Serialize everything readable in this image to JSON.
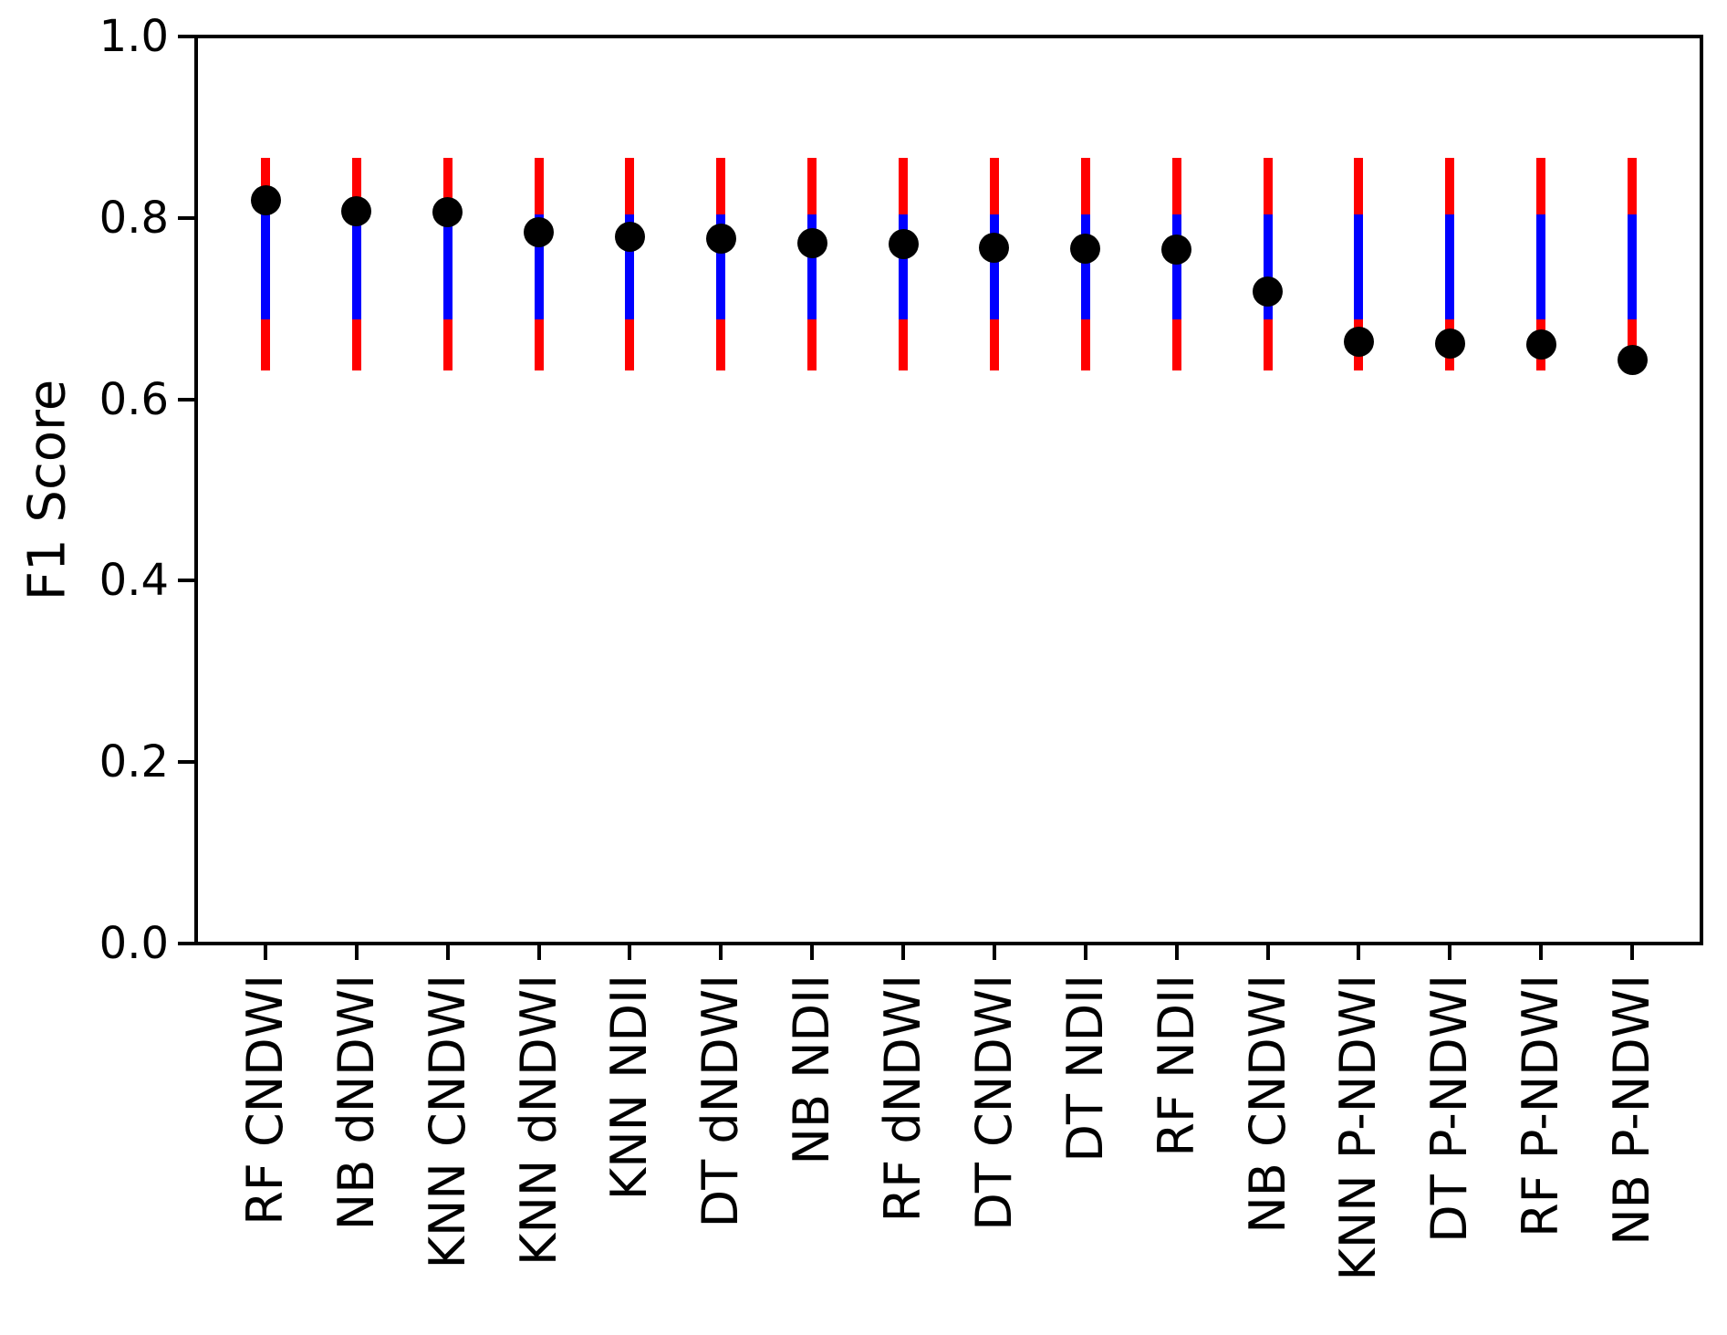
{
  "chart_data": {
    "type": "scatter",
    "title": "",
    "xlabel": "",
    "ylabel": "F1 Score",
    "ylim": [
      0.0,
      1.0
    ],
    "yticks": [
      0.0,
      0.2,
      0.4,
      0.6,
      0.8,
      1.0
    ],
    "ytick_labels": [
      "0.0",
      "0.2",
      "0.4",
      "0.6",
      "0.8",
      "1.0"
    ],
    "grid": false,
    "legend": null,
    "categories": [
      "RF CNDWI",
      "NB dNDWI",
      "KNN CNDWI",
      "KNN dNDWI",
      "KNN NDII",
      "DT dNDWI",
      "NB NDII",
      "RF dNDWI",
      "DT CNDWI",
      "DT NDII",
      "RF NDII",
      "NB CNDWI",
      "KNN P-NDWI",
      "DT P-NDWI",
      "RF P-NDWI",
      "NB P-NDWI"
    ],
    "series": [
      {
        "name": "f1-score-point",
        "type": "point",
        "marker": "circle",
        "color": "#000000",
        "values": [
          0.819,
          0.807,
          0.806,
          0.784,
          0.779,
          0.777,
          0.772,
          0.771,
          0.767,
          0.766,
          0.765,
          0.719,
          0.663,
          0.661,
          0.66,
          0.643
        ]
      },
      {
        "name": "outer-range-errorbar",
        "type": "vertical-range",
        "color": "#ff0000",
        "low": [
          0.632,
          0.632,
          0.632,
          0.632,
          0.632,
          0.632,
          0.632,
          0.632,
          0.632,
          0.632,
          0.632,
          0.632,
          0.632,
          0.632,
          0.632,
          0.632
        ],
        "high": [
          0.866,
          0.866,
          0.866,
          0.866,
          0.866,
          0.866,
          0.866,
          0.866,
          0.866,
          0.866,
          0.866,
          0.866,
          0.866,
          0.866,
          0.866,
          0.866
        ]
      },
      {
        "name": "inner-range-errorbar",
        "type": "vertical-range",
        "color": "#0000ff",
        "low": [
          0.688,
          0.688,
          0.688,
          0.688,
          0.688,
          0.688,
          0.688,
          0.688,
          0.688,
          0.688,
          0.688,
          0.688,
          0.688,
          0.688,
          0.688,
          0.688
        ],
        "high": [
          0.804,
          0.804,
          0.804,
          0.804,
          0.804,
          0.804,
          0.804,
          0.804,
          0.804,
          0.804,
          0.804,
          0.804,
          0.804,
          0.804,
          0.804,
          0.804
        ]
      }
    ],
    "axis_color": "#000000",
    "background_color": "#ffffff"
  }
}
